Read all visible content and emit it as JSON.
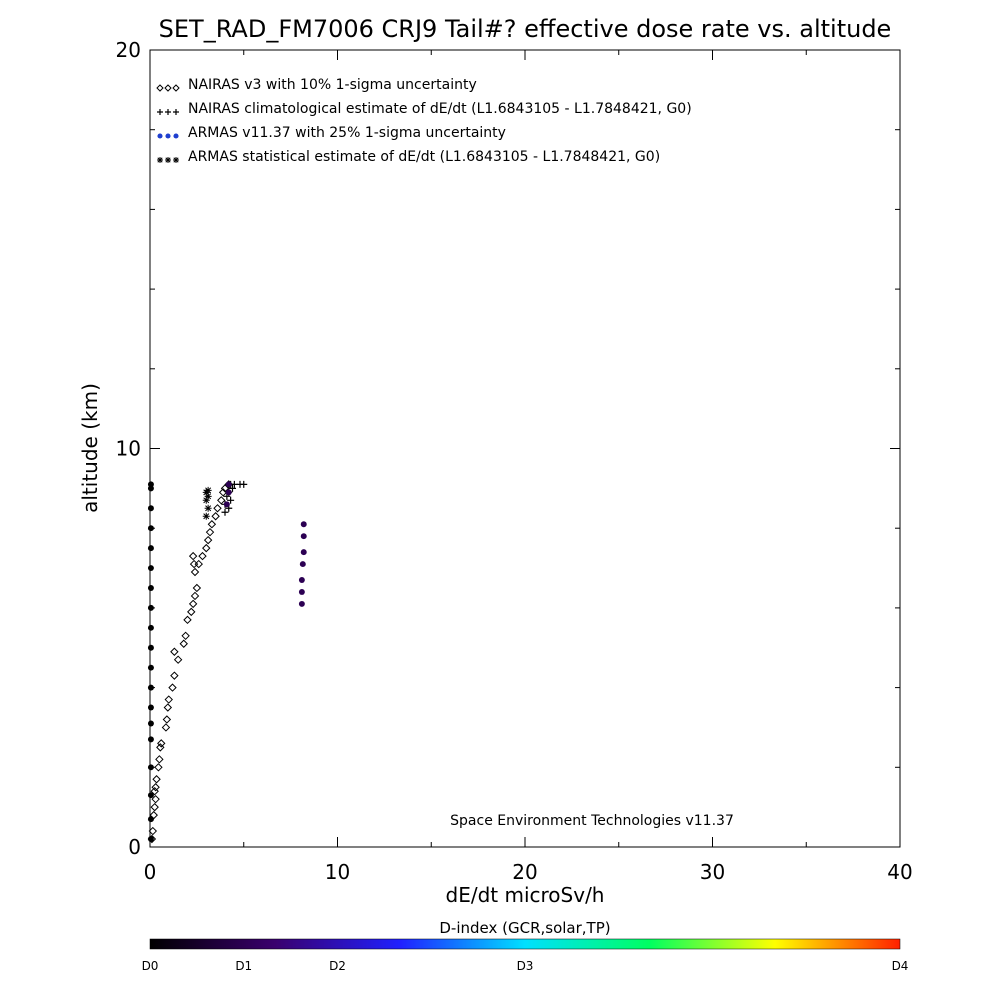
{
  "chart_data": {
    "type": "scatter",
    "title": "SET_RAD_FM7006  CRJ9 Tail#? effective dose rate vs. altitude",
    "xlabel": "dE/dt microSv/h",
    "ylabel": "altitude (km)",
    "xlim": [
      0,
      40
    ],
    "ylim": [
      0,
      20
    ],
    "x_ticks": [
      "0",
      "10",
      "20",
      "30",
      "40"
    ],
    "y_ticks": [
      "0",
      "10",
      "20"
    ],
    "x_minor_step": 5,
    "y_minor_step": 2,
    "grid": false,
    "legend_position": "top-left",
    "credit": "Space Environment Technologies v11.37",
    "legend": [
      {
        "label": "NAIRAS v3 with 10% 1-sigma uncertainty",
        "symbol": "diamond",
        "color": "#000000"
      },
      {
        "label": "NAIRAS climatological estimate of dE/dt (L1.6843105 - L1.7848421, G0)",
        "symbol": "plus",
        "color": "#000000"
      },
      {
        "label": "ARMAS v11.37 with 25% 1-sigma uncertainty",
        "symbol": "dot",
        "color": "#1f3fcf"
      },
      {
        "label": "ARMAS statistical estimate of dE/dt (L1.6843105 - L1.7848421, G0)",
        "symbol": "asterisk",
        "color": "#000000"
      }
    ],
    "series": [
      {
        "name": "NAIRAS v3 with 10% 1-sigma uncertainty",
        "symbol": "diamond",
        "color": "#000000",
        "points": [
          [
            0.1,
            0.2
          ],
          [
            0.15,
            0.4
          ],
          [
            0.2,
            0.8
          ],
          [
            0.25,
            1.0
          ],
          [
            0.3,
            1.2
          ],
          [
            0.25,
            1.4
          ],
          [
            0.3,
            1.5
          ],
          [
            0.35,
            1.7
          ],
          [
            0.45,
            2.0
          ],
          [
            0.5,
            2.2
          ],
          [
            0.55,
            2.5
          ],
          [
            0.6,
            2.6
          ],
          [
            0.85,
            3.0
          ],
          [
            0.9,
            3.2
          ],
          [
            0.95,
            3.5
          ],
          [
            1.0,
            3.7
          ],
          [
            1.2,
            4.0
          ],
          [
            1.3,
            4.3
          ],
          [
            1.5,
            4.7
          ],
          [
            1.3,
            4.9
          ],
          [
            1.8,
            5.1
          ],
          [
            1.9,
            5.3
          ],
          [
            2.0,
            5.7
          ],
          [
            2.2,
            5.9
          ],
          [
            2.3,
            6.1
          ],
          [
            2.4,
            6.3
          ],
          [
            2.5,
            6.5
          ],
          [
            2.4,
            6.9
          ],
          [
            2.35,
            7.1
          ],
          [
            2.3,
            7.3
          ],
          [
            2.6,
            7.1
          ],
          [
            2.8,
            7.3
          ],
          [
            3.0,
            7.5
          ],
          [
            3.1,
            7.7
          ],
          [
            3.2,
            7.9
          ],
          [
            3.3,
            8.1
          ],
          [
            3.5,
            8.3
          ],
          [
            3.6,
            8.5
          ],
          [
            3.8,
            8.7
          ],
          [
            3.9,
            8.9
          ],
          [
            4.0,
            9.0
          ],
          [
            4.2,
            9.1
          ]
        ]
      },
      {
        "name": "NAIRAS climatological estimate of dE/dt (L1.6843105 - L1.7848421, G0)",
        "symbol": "plus",
        "color": "#000000",
        "points": [
          [
            4.0,
            8.4
          ],
          [
            4.2,
            8.5
          ],
          [
            4.0,
            8.6
          ],
          [
            4.3,
            8.7
          ],
          [
            4.1,
            8.8
          ],
          [
            4.2,
            8.9
          ],
          [
            4.4,
            9.0
          ],
          [
            4.5,
            9.1
          ],
          [
            4.8,
            9.1
          ],
          [
            5.0,
            9.1
          ],
          [
            4.3,
            9.1
          ]
        ]
      },
      {
        "name": "ARMAS v11.37 with 25% 1-sigma uncertainty",
        "symbol": "dot",
        "color_by_dindex": true,
        "points": [
          [
            0.05,
            0.2
          ],
          [
            0.05,
            0.7
          ],
          [
            0.05,
            1.3
          ],
          [
            0.05,
            2.0
          ],
          [
            0.05,
            2.7
          ],
          [
            0.05,
            3.1
          ],
          [
            0.05,
            3.5
          ],
          [
            0.05,
            4.0
          ],
          [
            0.05,
            4.5
          ],
          [
            0.05,
            5.0
          ],
          [
            0.05,
            5.5
          ],
          [
            0.05,
            6.0
          ],
          [
            0.05,
            6.5
          ],
          [
            0.05,
            7.0
          ],
          [
            0.05,
            7.5
          ],
          [
            0.05,
            8.0
          ],
          [
            0.05,
            8.5
          ],
          [
            0.05,
            9.0
          ],
          [
            0.05,
            9.1
          ],
          [
            4.1,
            8.6
          ],
          [
            4.2,
            8.9
          ],
          [
            4.2,
            9.1
          ],
          [
            8.1,
            6.1
          ],
          [
            8.1,
            6.4
          ],
          [
            8.1,
            6.7
          ],
          [
            8.15,
            7.1
          ],
          [
            8.2,
            7.4
          ],
          [
            8.2,
            7.8
          ],
          [
            8.2,
            8.1
          ]
        ],
        "dindex": [
          0,
          0,
          0,
          0,
          0,
          0,
          0,
          0,
          0,
          0,
          0,
          0,
          0,
          0,
          0,
          0,
          0,
          0,
          0,
          1,
          1,
          1,
          1,
          1,
          1,
          1,
          1,
          1,
          1
        ]
      },
      {
        "name": "ARMAS statistical estimate of dE/dt (L1.6843105 - L1.7848421, G0)",
        "symbol": "asterisk",
        "color": "#000000",
        "points": [
          [
            3.0,
            8.3
          ],
          [
            3.1,
            8.5
          ],
          [
            3.0,
            8.7
          ],
          [
            3.1,
            8.8
          ],
          [
            3.0,
            8.9
          ],
          [
            3.1,
            8.95
          ]
        ]
      }
    ],
    "colorbar": {
      "title": "D-index (GCR,solar,TP)",
      "labels": [
        "D0",
        "D1",
        "D2",
        "D3",
        "D4"
      ],
      "label_positions": [
        0,
        0.125,
        0.25,
        0.5,
        1.0
      ],
      "colormap": [
        "#000000",
        "#3a006e",
        "#2020ff",
        "#00e0ff",
        "#00ff60",
        "#ffff00",
        "#ff2000"
      ]
    }
  }
}
